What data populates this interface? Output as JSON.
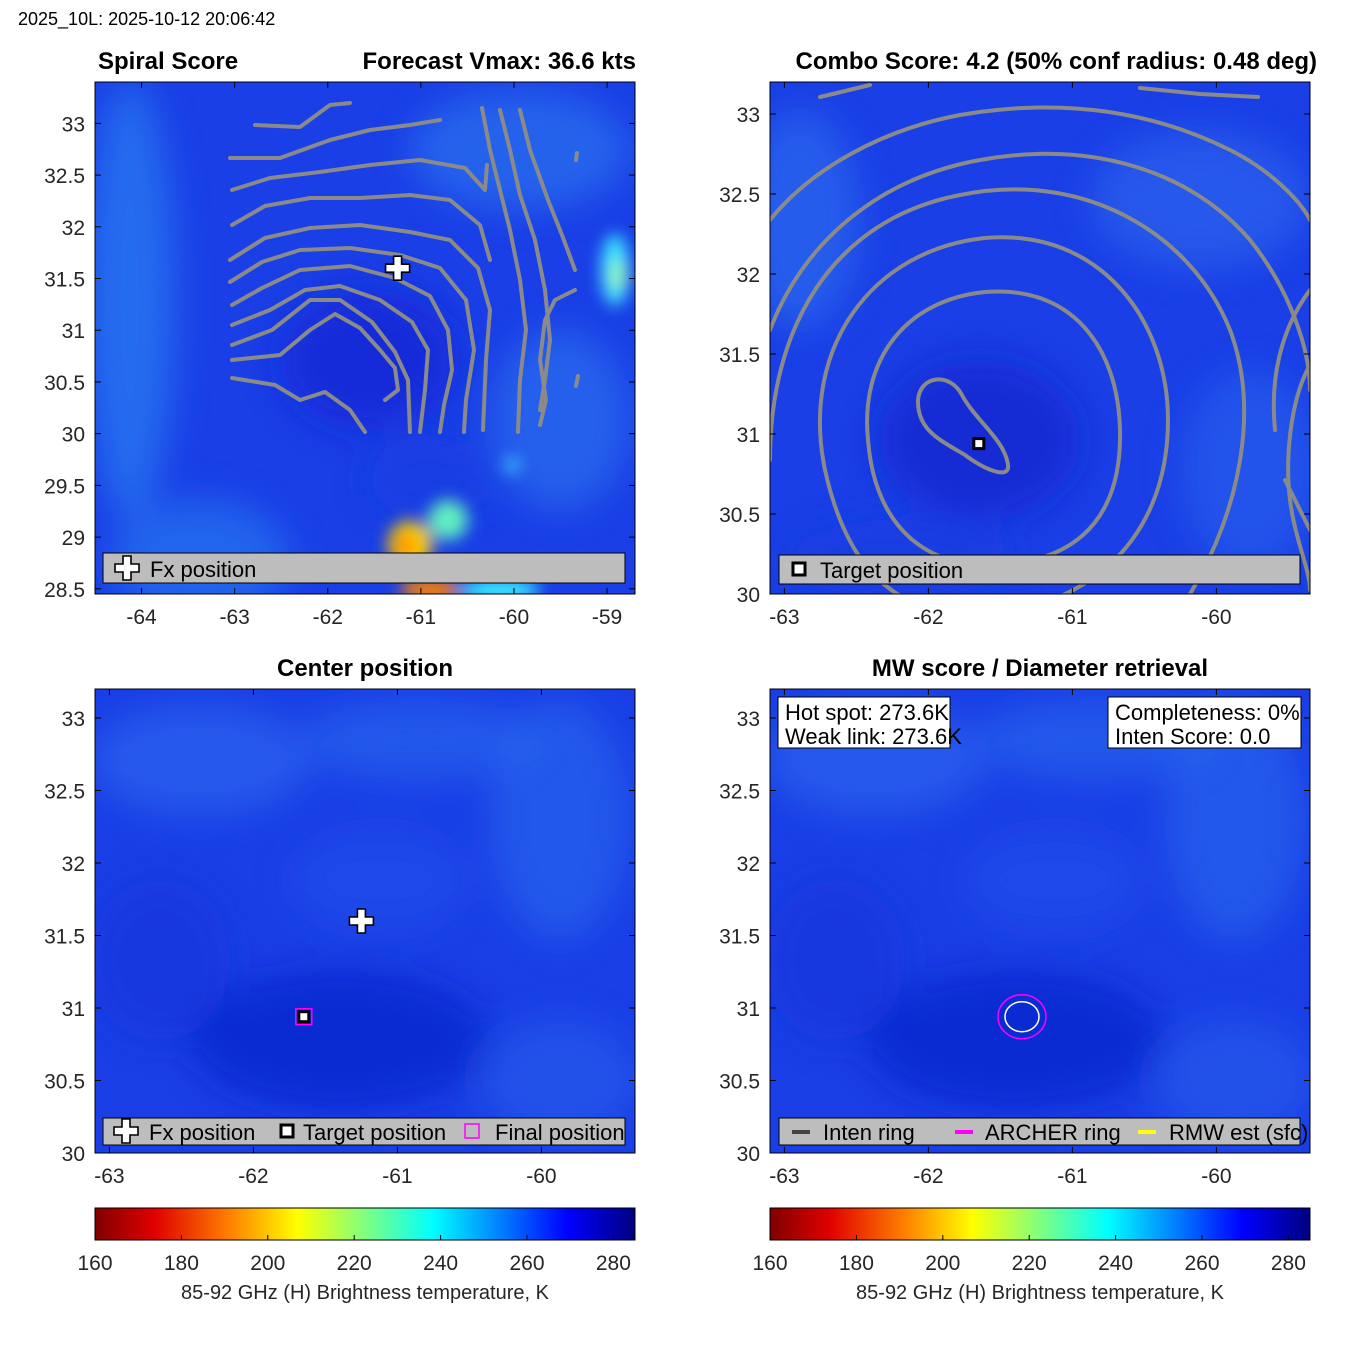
{
  "header": {
    "text": "2025_10L: 2025-10-12 20:06:42"
  },
  "colors": {
    "contour": "#8a8a8a",
    "legend_bg": "#bdbdbd",
    "magenta": "#ff00ff",
    "yellow": "#ffff00",
    "dark_gray": "#444444",
    "field_base": "#1a3fe6"
  },
  "chart_data": [
    {
      "id": "spiral",
      "type": "heatmap",
      "title_left": "Spiral Score",
      "title_right": "Forecast Vmax: 36.6 kts",
      "xlim": [
        -64.5,
        -58.7
      ],
      "ylim": [
        28.45,
        33.4
      ],
      "xticks": [
        -64,
        -63,
        -62,
        -61,
        -60,
        -59
      ],
      "yticks": [
        28.5,
        29,
        29.5,
        30,
        30.5,
        31,
        31.5,
        32,
        32.5,
        33
      ],
      "markers": [
        {
          "kind": "fx-cross",
          "lon": -61.25,
          "lat": 31.6
        }
      ],
      "legend": [
        {
          "symbol": "fx-cross",
          "label": "Fx position"
        }
      ]
    },
    {
      "id": "combo",
      "type": "heatmap",
      "title": "Combo Score: 4.2  (50% conf radius: 0.48 deg)",
      "xlim": [
        -63.1,
        -59.35
      ],
      "ylim": [
        30.0,
        33.2
      ],
      "xticks": [
        -63,
        -62,
        -61,
        -60
      ],
      "yticks": [
        30,
        30.5,
        31,
        31.5,
        32,
        32.5,
        33
      ],
      "markers": [
        {
          "kind": "target-square",
          "lon": -61.65,
          "lat": 30.94
        }
      ],
      "legend": [
        {
          "symbol": "target-square",
          "label": "Target position"
        }
      ]
    },
    {
      "id": "center",
      "type": "heatmap",
      "title": "Center position",
      "xlim": [
        -63.1,
        -59.35
      ],
      "ylim": [
        30.0,
        33.2
      ],
      "xticks": [
        -63,
        -62,
        -61,
        -60
      ],
      "yticks": [
        30,
        30.5,
        31,
        31.5,
        32,
        32.5,
        33
      ],
      "markers": [
        {
          "kind": "fx-cross",
          "lon": -61.25,
          "lat": 31.6
        },
        {
          "kind": "target-square",
          "lon": -61.65,
          "lat": 30.94
        },
        {
          "kind": "final-square",
          "lon": -61.65,
          "lat": 30.94
        }
      ],
      "legend": [
        {
          "symbol": "fx-cross",
          "label": "Fx position"
        },
        {
          "symbol": "target-square",
          "label": "Target position"
        },
        {
          "symbol": "final-square",
          "label": "Final position"
        }
      ]
    },
    {
      "id": "mw",
      "type": "heatmap",
      "title": "MW score / Diameter retrieval",
      "xlim": [
        -63.1,
        -59.35
      ],
      "ylim": [
        30.0,
        33.2
      ],
      "xticks": [
        -63,
        -62,
        -61,
        -60
      ],
      "yticks": [
        30,
        30.5,
        31,
        31.5,
        32,
        32.5,
        33
      ],
      "info_left": [
        "Hot spot: 273.6K",
        "Weak link: 273.6K"
      ],
      "info_right": [
        "Completeness: 0%",
        "Inten Score: 0.0"
      ],
      "rings": {
        "lon": -61.35,
        "lat": 30.94
      },
      "legend": [
        {
          "symbol": "dark-line",
          "label": "Inten ring"
        },
        {
          "symbol": "magenta-line",
          "label": "ARCHER ring"
        },
        {
          "symbol": "yellow-line",
          "label": "RMW est (sfc)"
        }
      ]
    }
  ],
  "colorbars": [
    {
      "id": "cb1",
      "range": [
        160,
        285
      ],
      "ticks": [
        160,
        180,
        200,
        220,
        240,
        260,
        280
      ],
      "label": "85-92 GHz (H) Brightness temperature, K"
    },
    {
      "id": "cb2",
      "range": [
        160,
        285
      ],
      "ticks": [
        160,
        180,
        200,
        220,
        240,
        260,
        280
      ],
      "label": "85-92 GHz (H) Brightness temperature, K"
    }
  ]
}
